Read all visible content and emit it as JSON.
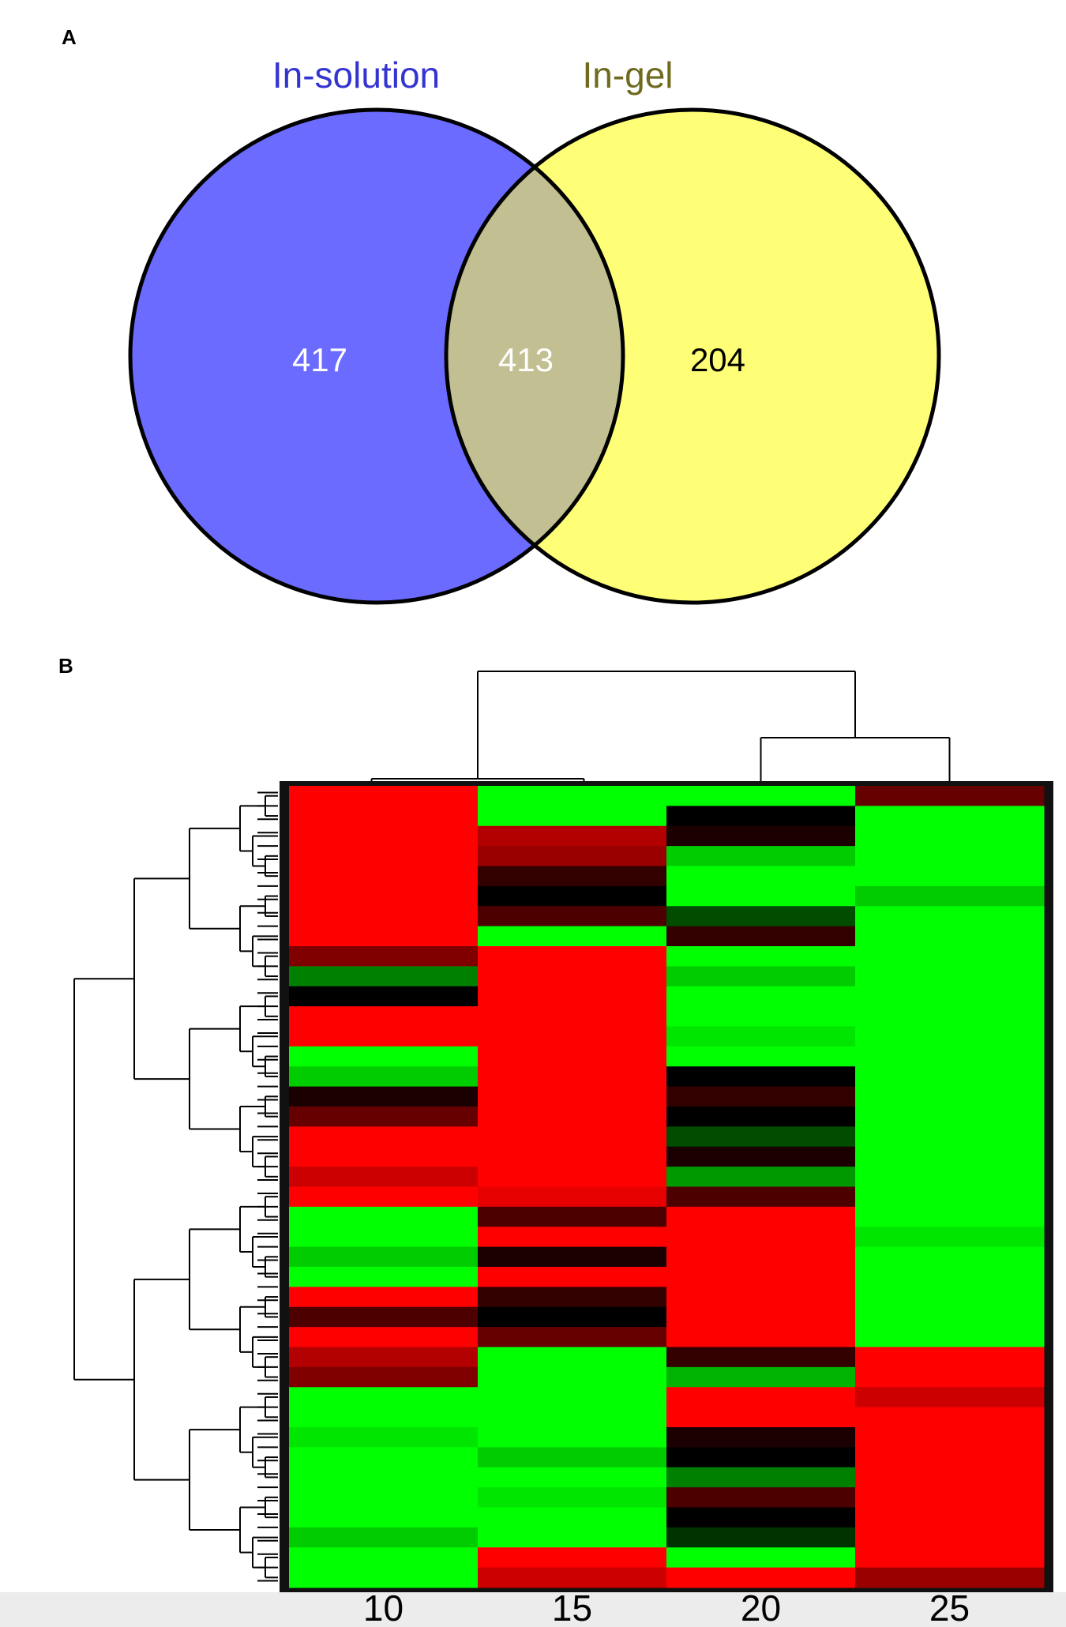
{
  "chart_data": [
    {
      "type": "venn",
      "panel": "A",
      "series": [
        {
          "name": "In-solution",
          "color": "#6b6bff",
          "label_color": "#3434d0"
        },
        {
          "name": "In-gel",
          "color": "#ffff77",
          "label_color": "#6e6a1e"
        }
      ],
      "overlap_color": "#c2bf92",
      "values": [
        417,
        413,
        204
      ],
      "value_colors": [
        "#ffffff",
        "#ffffff",
        "#000000"
      ]
    },
    {
      "type": "heatmap",
      "panel": "B",
      "categories": [
        "10",
        "15",
        "20",
        "25"
      ],
      "low_color": "#00ff00",
      "mid_color": "#000000",
      "high_color": "#ff0000",
      "values": [
        [
          1,
          -1,
          -1,
          0.4
        ],
        [
          1,
          -1,
          0,
          -1
        ],
        [
          1,
          0.7,
          0.1,
          -1
        ],
        [
          1,
          0.6,
          -0.8,
          -1
        ],
        [
          1,
          0.2,
          -1,
          -1
        ],
        [
          1,
          0,
          -1,
          -0.8
        ],
        [
          1,
          0.3,
          -0.3,
          -1
        ],
        [
          1,
          -1,
          0.2,
          -1
        ],
        [
          0.5,
          1,
          -1,
          -1
        ],
        [
          -0.5,
          1,
          -0.8,
          -1
        ],
        [
          0,
          1,
          -1,
          -1
        ],
        [
          1,
          1,
          -1,
          -1
        ],
        [
          1,
          1,
          -0.9,
          -1
        ],
        [
          -1,
          1,
          -1,
          -1
        ],
        [
          -0.8,
          1,
          0,
          -1
        ],
        [
          0.1,
          1,
          0.2,
          -1
        ],
        [
          0.4,
          1,
          0,
          -1
        ],
        [
          1,
          1,
          -0.3,
          -1
        ],
        [
          1,
          1,
          0.1,
          -1
        ],
        [
          0.8,
          1,
          -0.6,
          -1
        ],
        [
          1,
          0.9,
          0.3,
          -1
        ],
        [
          -1,
          0.3,
          1,
          -1
        ],
        [
          -1,
          1,
          1,
          -0.9
        ],
        [
          -0.8,
          0.1,
          1,
          -1
        ],
        [
          -1,
          1,
          1,
          -1
        ],
        [
          1,
          0.2,
          1,
          -1
        ],
        [
          0.3,
          0,
          1,
          -1
        ],
        [
          1,
          0.4,
          1,
          -1
        ],
        [
          0.7,
          -1,
          0.2,
          1
        ],
        [
          0.5,
          -1,
          -0.7,
          1
        ],
        [
          -1,
          -1,
          1,
          0.8
        ],
        [
          -1,
          -1,
          1,
          1
        ],
        [
          -0.9,
          -1,
          0.1,
          1
        ],
        [
          -1,
          -0.8,
          0,
          1
        ],
        [
          -1,
          -1,
          -0.5,
          1
        ],
        [
          -1,
          -0.9,
          0.3,
          1
        ],
        [
          -1,
          -1,
          0,
          1
        ],
        [
          -0.8,
          -1,
          -0.2,
          1
        ],
        [
          -1,
          1,
          -1,
          1
        ],
        [
          -1,
          0.8,
          1,
          0.6
        ]
      ]
    }
  ]
}
